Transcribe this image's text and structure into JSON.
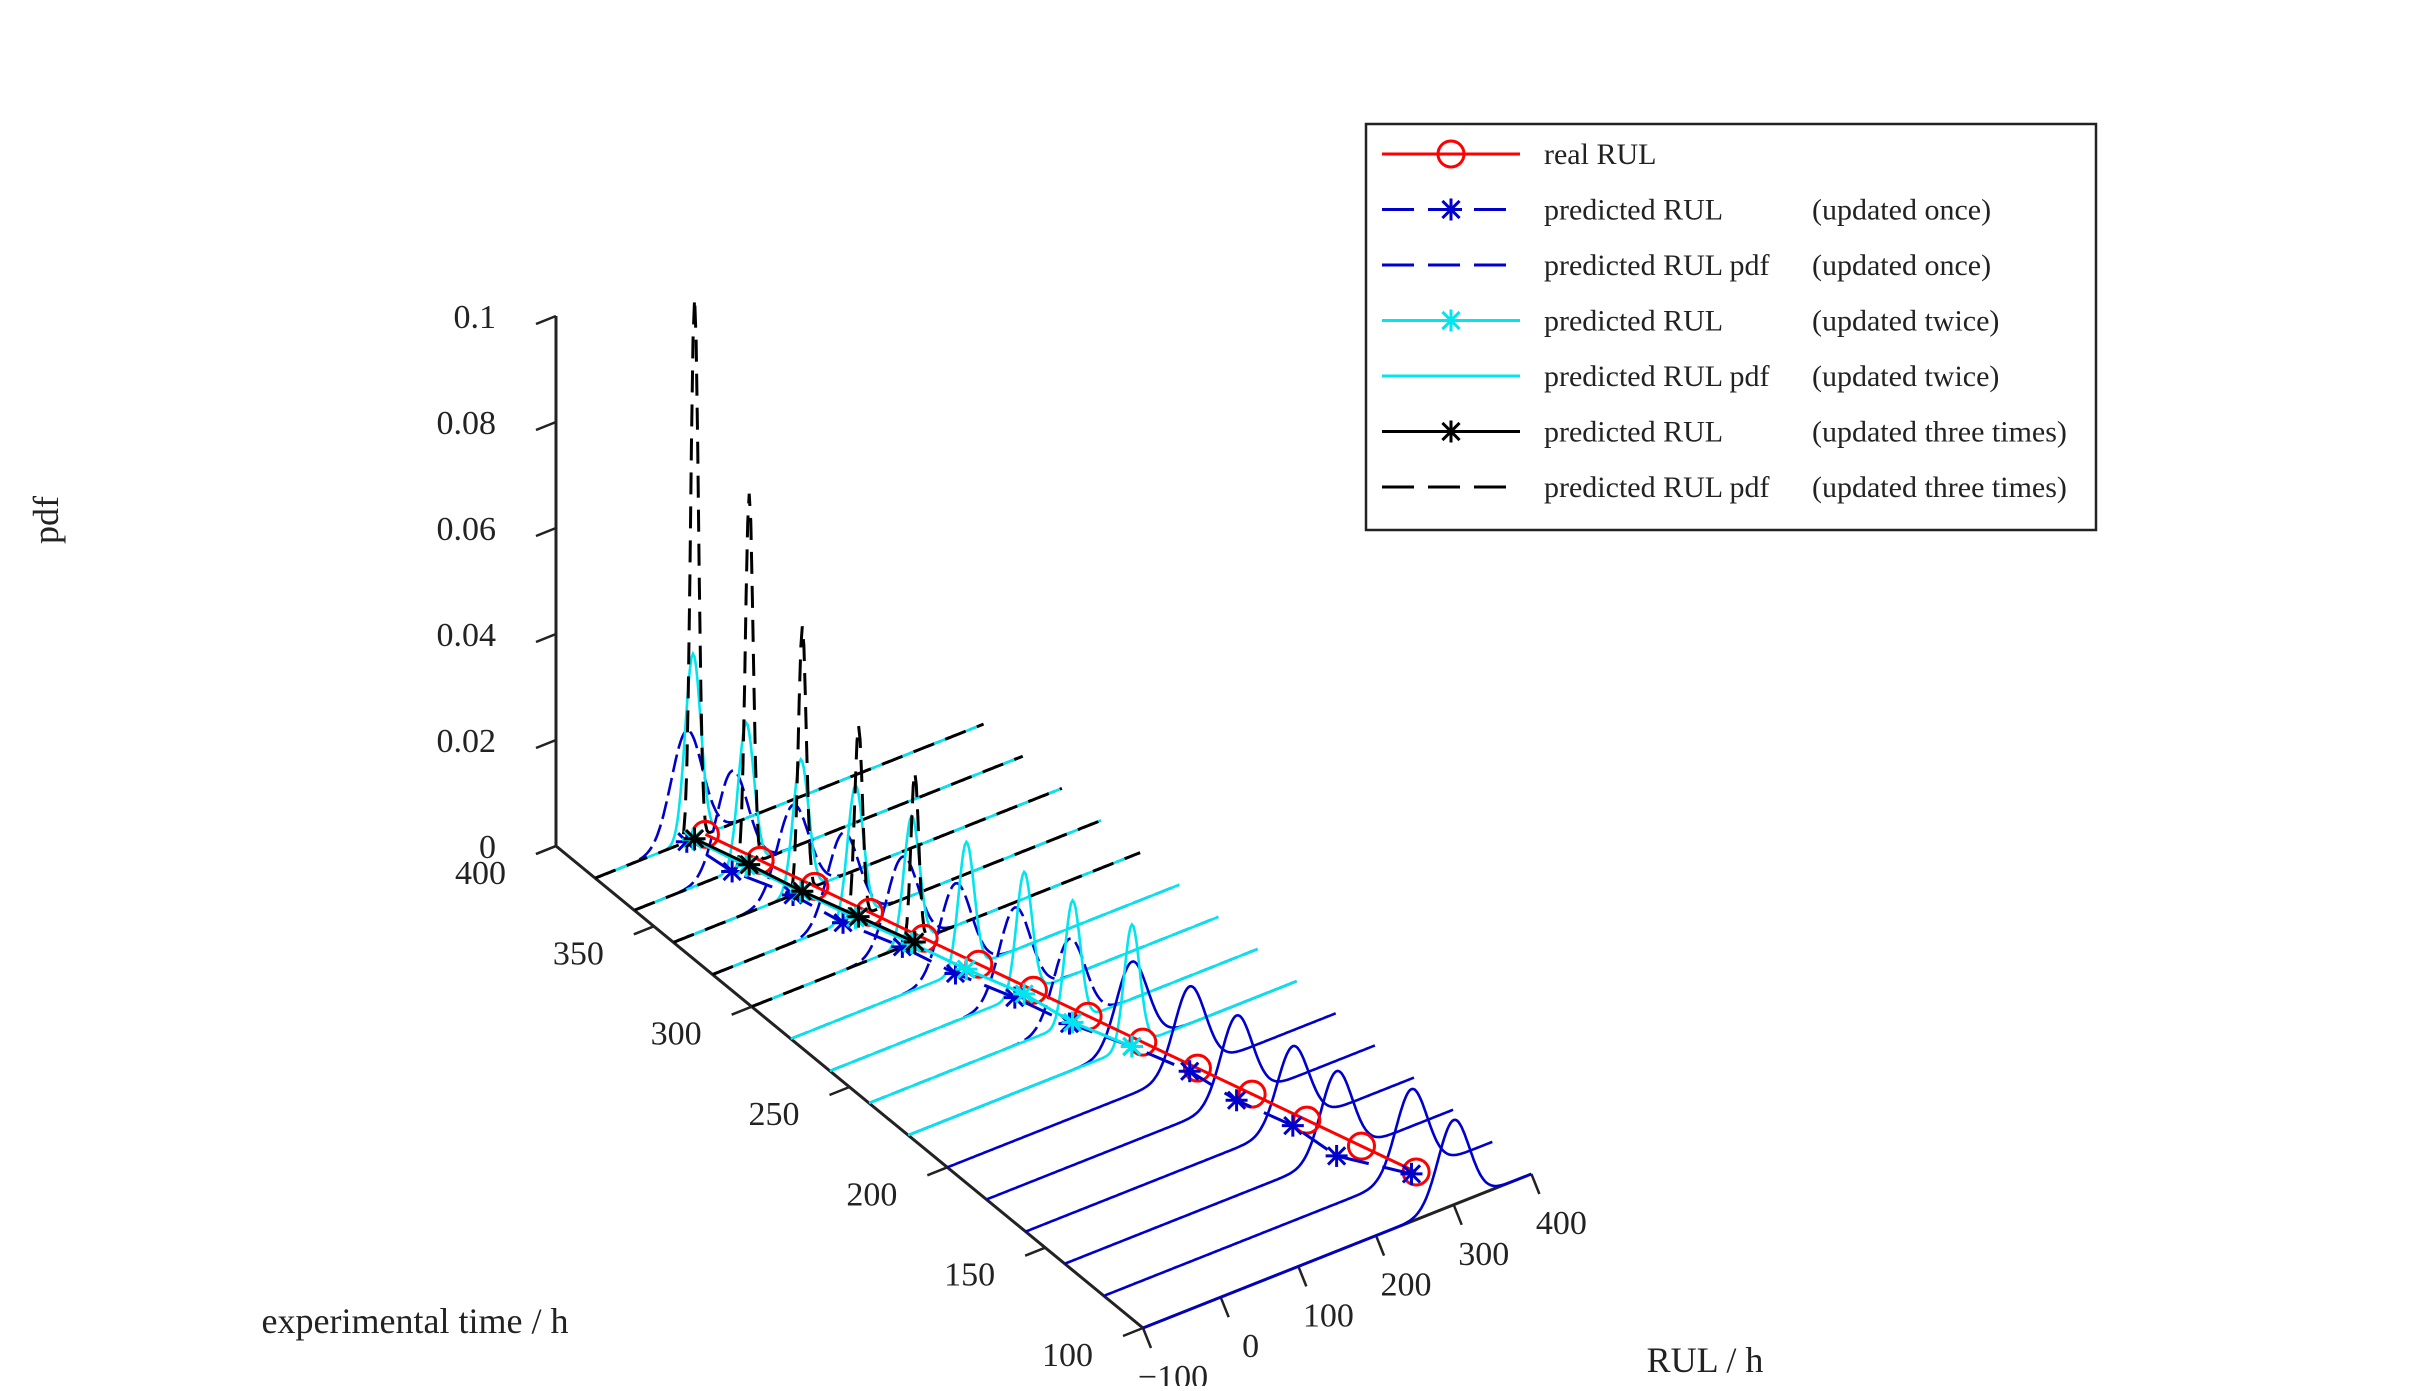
{
  "chart_data": {
    "type": "3d-line",
    "title": "",
    "axes": {
      "x": {
        "label": "RUL / h",
        "range": [
          -100,
          400
        ],
        "ticks": [
          -100,
          0,
          100,
          200,
          300,
          400
        ]
      },
      "y": {
        "label": "experimental time / h",
        "range": [
          100,
          400
        ],
        "ticks": [
          100,
          150,
          200,
          250,
          300,
          350,
          400
        ]
      },
      "z": {
        "label": "pdf",
        "range": [
          0,
          0.1
        ],
        "ticks": [
          0,
          0.02,
          0.04,
          0.06,
          0.08,
          0.1
        ],
        "tick_labels": [
          "0",
          "0.02",
          "0.04",
          "0.06",
          "0.08",
          "0.1"
        ]
      }
    },
    "legend": {
      "placement": "top-right",
      "items": [
        {
          "label": "real RUL",
          "note": "",
          "color": "#ff0000",
          "line": "solid",
          "marker": "circle"
        },
        {
          "label": "predicted RUL",
          "note": "(updated once)",
          "color": "#0000cd",
          "line": "dashed",
          "marker": "asterisk"
        },
        {
          "label": "predicted RUL pdf",
          "note": "(updated once)",
          "color": "#0000cd",
          "line": "dashed",
          "marker": "none"
        },
        {
          "label": "predicted RUL",
          "note": "(updated twice)",
          "color": "#00e5ee",
          "line": "solid",
          "marker": "asterisk"
        },
        {
          "label": "predicted RUL pdf",
          "note": "(updated twice)",
          "color": "#00e5ee",
          "line": "solid",
          "marker": "none"
        },
        {
          "label": "predicted RUL",
          "note": "(updated three times)",
          "color": "#000000",
          "line": "solid",
          "marker": "asterisk"
        },
        {
          "label": "predicted RUL pdf",
          "note": "(updated three times)",
          "color": "#000000",
          "line": "dashed",
          "marker": "none"
        }
      ]
    },
    "series": [
      {
        "name": "real RUL",
        "color": "#ff0000",
        "time": [
          120,
          140,
          160,
          180,
          200,
          220,
          240,
          260,
          280,
          300,
          320,
          340,
          360,
          380
        ],
        "rul": [
          302,
          282,
          262,
          242,
          222,
          202,
          182,
          162,
          142,
          122,
          102,
          82,
          62,
          42
        ]
      },
      {
        "name": "predicted RUL (updated once)",
        "color": "#0000cd",
        "time": [
          120,
          140,
          160,
          180,
          200,
          220,
          240,
          260,
          280,
          300,
          320,
          340,
          360,
          380
        ],
        "rul": [
          296,
          250,
          244,
          222,
          212,
          188,
          158,
          138,
          112,
          94,
          68,
          54,
          26,
          18
        ]
      },
      {
        "name": "predicted RUL (updated twice)",
        "color": "#00e5ee",
        "time": [
          220,
          240,
          260,
          280,
          300,
          320,
          340,
          360,
          380
        ],
        "rul": [
          188,
          162,
          150,
          126,
          106,
          84,
          64,
          44,
          26
        ]
      },
      {
        "name": "predicted RUL (updated three times)",
        "color": "#000000",
        "time": [
          300,
          320,
          340,
          360,
          380
        ],
        "rul": [
          110,
          88,
          66,
          48,
          28
        ]
      }
    ],
    "pdf_curves": [
      {
        "group": "updated once",
        "color": "#0000cd",
        "sigma": 20,
        "time": [
          100,
          120,
          140,
          160,
          180,
          200,
          220,
          240,
          260,
          280,
          300,
          320,
          340,
          360,
          380
        ],
        "mean": [
          300,
          296,
          250,
          244,
          222,
          212,
          188,
          158,
          138,
          112,
          94,
          68,
          54,
          26,
          18
        ],
        "peak": [
          0.016,
          0.016,
          0.016,
          0.015,
          0.016,
          0.016,
          0.016,
          0.016,
          0.017,
          0.017,
          0.017,
          0.017,
          0.017,
          0.019,
          0.021
        ]
      },
      {
        "group": "updated twice",
        "color": "#00e5ee",
        "sigma": 10,
        "time": [
          220,
          240,
          260,
          280,
          300,
          320,
          340,
          360,
          380
        ],
        "mean": [
          188,
          162,
          150,
          126,
          106,
          84,
          64,
          44,
          26
        ],
        "peak": [
          0.023,
          0.023,
          0.023,
          0.024,
          0.024,
          0.025,
          0.025,
          0.027,
          0.035
        ]
      },
      {
        "group": "updated three times",
        "color": "#000000",
        "sigma": 5,
        "time": [
          300,
          320,
          340,
          360,
          380
        ],
        "mean": [
          110,
          88,
          66,
          48,
          28
        ],
        "peak": [
          0.032,
          0.036,
          0.05,
          0.07,
          0.102
        ]
      }
    ]
  }
}
